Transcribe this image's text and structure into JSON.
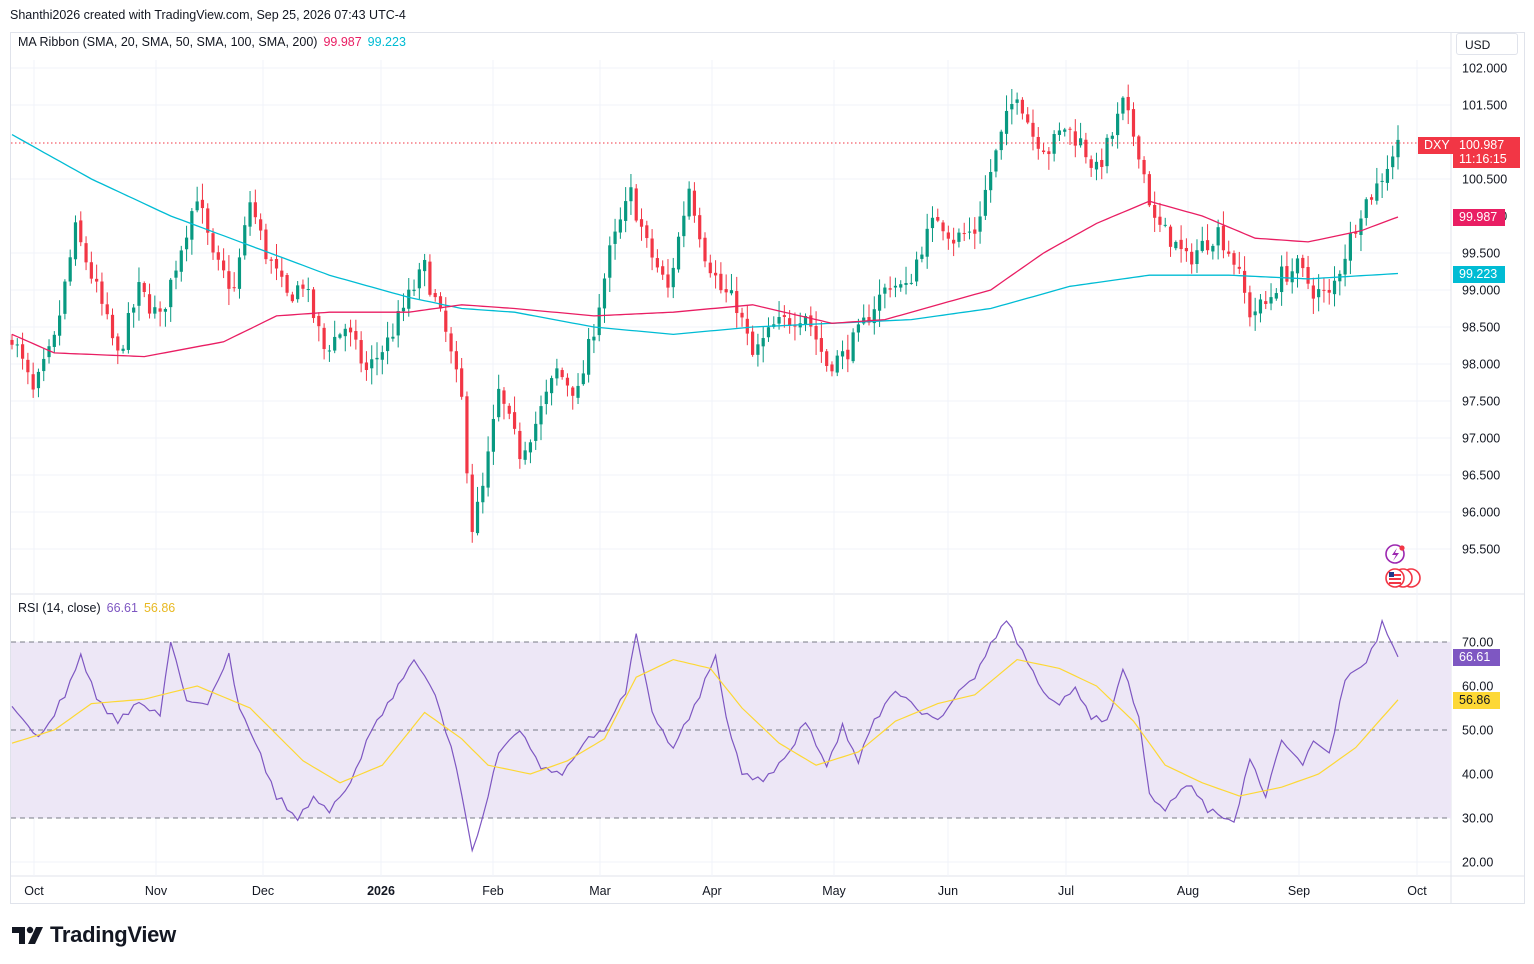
{
  "header": {
    "credit": "Shanthi2026 created with TradingView.com, Sep 25, 2026 07:43 UTC-4"
  },
  "currency_button": "USD",
  "brand": "TradingView",
  "colors": {
    "up": "#089981",
    "down": "#f23645",
    "sma20": "#e91e63",
    "sma50": "#00bcd4",
    "rsi": "#7e57c2",
    "rsi_ma": "#fdd835",
    "rsi_band": "#ede7f6"
  },
  "legend": {
    "ma_title": "MA Ribbon (SMA, 20, SMA, 50, SMA, 100, SMA, 200)",
    "ma_value_1": "99.987",
    "ma_value_2": "99.223",
    "rsi_title": "RSI (14, close)",
    "rsi_value_1": "66.61",
    "rsi_value_2": "56.86"
  },
  "badges": {
    "symbol": "DXY",
    "last_price": "100.987",
    "countdown": "11:16:15",
    "sma20": "99.987",
    "sma50": "99.223",
    "rsi": "66.61",
    "rsi_ma": "56.86"
  },
  "chart_data": [
    {
      "type": "candlestick",
      "symbol": "DXY",
      "x_labels": [
        "Oct",
        "Nov",
        "Dec",
        "2026",
        "Feb",
        "Mar",
        "Apr",
        "May",
        "Jun",
        "Jul",
        "Aug",
        "Sep",
        "Oct"
      ],
      "ylim": [
        95.0,
        102.3
      ],
      "y_ticks": [
        "95.500",
        "96.000",
        "96.500",
        "97.000",
        "97.500",
        "98.000",
        "98.500",
        "99.000",
        "99.500",
        "100.500",
        "101.500",
        "102.000"
      ],
      "last_price": 100.987,
      "close_path": [
        [
          0,
          98.4
        ],
        [
          4,
          97.6
        ],
        [
          8,
          98.3
        ],
        [
          12,
          99.8
        ],
        [
          16,
          99.0
        ],
        [
          20,
          98.1
        ],
        [
          24,
          99.0
        ],
        [
          28,
          98.6
        ],
        [
          32,
          99.6
        ],
        [
          35,
          100.3
        ],
        [
          38,
          99.4
        ],
        [
          42,
          99.0
        ],
        [
          45,
          100.2
        ],
        [
          48,
          99.5
        ],
        [
          52,
          98.9
        ],
        [
          55,
          99.1
        ],
        [
          59,
          98.2
        ],
        [
          63,
          98.5
        ],
        [
          67,
          97.9
        ],
        [
          71,
          98.3
        ],
        [
          75,
          98.9
        ],
        [
          78,
          99.3
        ],
        [
          82,
          98.4
        ],
        [
          85,
          97.5
        ],
        [
          87,
          95.8
        ],
        [
          89,
          96.3
        ],
        [
          92,
          97.6
        ],
        [
          96,
          96.8
        ],
        [
          99,
          97.2
        ],
        [
          103,
          97.9
        ],
        [
          107,
          97.6
        ],
        [
          110,
          98.5
        ],
        [
          113,
          99.5
        ],
        [
          117,
          100.3
        ],
        [
          120,
          99.6
        ],
        [
          124,
          99.0
        ],
        [
          128,
          100.4
        ],
        [
          131,
          99.5
        ],
        [
          134,
          99.0
        ],
        [
          137,
          98.8
        ],
        [
          140,
          98.1
        ],
        [
          144,
          98.5
        ],
        [
          147,
          98.6
        ],
        [
          150,
          98.7
        ],
        [
          154,
          98.0
        ],
        [
          157,
          98.1
        ],
        [
          160,
          98.4
        ],
        [
          163,
          98.8
        ],
        [
          166,
          99.1
        ],
        [
          169,
          99.0
        ],
        [
          172,
          99.6
        ],
        [
          175,
          100.0
        ],
        [
          178,
          99.7
        ],
        [
          182,
          99.8
        ],
        [
          185,
          100.6
        ],
        [
          188,
          101.3
        ],
        [
          190,
          101.7
        ],
        [
          193,
          101.1
        ],
        [
          196,
          100.9
        ],
        [
          199,
          101.2
        ],
        [
          202,
          101.0
        ],
        [
          205,
          100.6
        ],
        [
          208,
          101.1
        ],
        [
          210,
          101.5
        ],
        [
          213,
          100.9
        ],
        [
          216,
          99.9
        ],
        [
          219,
          99.7
        ],
        [
          222,
          99.4
        ],
        [
          225,
          99.6
        ],
        [
          228,
          99.8
        ],
        [
          231,
          99.4
        ],
        [
          234,
          98.7
        ],
        [
          237,
          98.8
        ],
        [
          240,
          99.2
        ],
        [
          243,
          99.3
        ],
        [
          246,
          99.0
        ],
        [
          249,
          98.9
        ],
        [
          252,
          99.5
        ],
        [
          255,
          100.1
        ],
        [
          258,
          100.4
        ],
        [
          260,
          100.7
        ],
        [
          262,
          100.98
        ]
      ],
      "sma20_path": [
        [
          0,
          98.4
        ],
        [
          8,
          98.15
        ],
        [
          25,
          98.1
        ],
        [
          40,
          98.3
        ],
        [
          50,
          98.65
        ],
        [
          60,
          98.7
        ],
        [
          75,
          98.7
        ],
        [
          85,
          98.8
        ],
        [
          95,
          98.75
        ],
        [
          110,
          98.65
        ],
        [
          125,
          98.7
        ],
        [
          140,
          98.8
        ],
        [
          155,
          98.55
        ],
        [
          165,
          98.6
        ],
        [
          175,
          98.8
        ],
        [
          185,
          99.0
        ],
        [
          195,
          99.5
        ],
        [
          205,
          99.9
        ],
        [
          215,
          100.2
        ],
        [
          225,
          100.0
        ],
        [
          235,
          99.7
        ],
        [
          245,
          99.65
        ],
        [
          255,
          99.8
        ],
        [
          262,
          99.987
        ]
      ],
      "sma50_path": [
        [
          0,
          101.1
        ],
        [
          15,
          100.5
        ],
        [
          30,
          100.0
        ],
        [
          45,
          99.6
        ],
        [
          60,
          99.2
        ],
        [
          75,
          98.9
        ],
        [
          85,
          98.75
        ],
        [
          95,
          98.7
        ],
        [
          110,
          98.5
        ],
        [
          125,
          98.4
        ],
        [
          140,
          98.5
        ],
        [
          155,
          98.55
        ],
        [
          170,
          98.6
        ],
        [
          185,
          98.75
        ],
        [
          200,
          99.05
        ],
        [
          215,
          99.2
        ],
        [
          230,
          99.2
        ],
        [
          245,
          99.15
        ],
        [
          262,
          99.223
        ]
      ]
    },
    {
      "type": "line",
      "name": "RSI (14, close)",
      "ylim": [
        15,
        77.5
      ],
      "y_ticks": [
        "20.00",
        "30.00",
        "40.00",
        "50.00",
        "60.00",
        "70.00"
      ],
      "bands": [
        30,
        50,
        70
      ],
      "rsi_path": [
        [
          0,
          55
        ],
        [
          5,
          48
        ],
        [
          10,
          58
        ],
        [
          13,
          67
        ],
        [
          16,
          57
        ],
        [
          20,
          52
        ],
        [
          24,
          56
        ],
        [
          28,
          53
        ],
        [
          30,
          70
        ],
        [
          33,
          57
        ],
        [
          37,
          56
        ],
        [
          41,
          67
        ],
        [
          43,
          55
        ],
        [
          47,
          44
        ],
        [
          50,
          35
        ],
        [
          54,
          30
        ],
        [
          57,
          35
        ],
        [
          60,
          32
        ],
        [
          64,
          38
        ],
        [
          68,
          50
        ],
        [
          72,
          58
        ],
        [
          76,
          66
        ],
        [
          80,
          58
        ],
        [
          84,
          42
        ],
        [
          86,
          29
        ],
        [
          87,
          22
        ],
        [
          89,
          30
        ],
        [
          92,
          45
        ],
        [
          96,
          50
        ],
        [
          100,
          41
        ],
        [
          104,
          40
        ],
        [
          108,
          47
        ],
        [
          112,
          50
        ],
        [
          116,
          59
        ],
        [
          118,
          72
        ],
        [
          121,
          54
        ],
        [
          125,
          46
        ],
        [
          129,
          55
        ],
        [
          133,
          67
        ],
        [
          135,
          53
        ],
        [
          138,
          40
        ],
        [
          142,
          38
        ],
        [
          147,
          45
        ],
        [
          150,
          52
        ],
        [
          154,
          42
        ],
        [
          157,
          51
        ],
        [
          160,
          43
        ],
        [
          163,
          52
        ],
        [
          167,
          59
        ],
        [
          171,
          55
        ],
        [
          175,
          52
        ],
        [
          179,
          59
        ],
        [
          182,
          62
        ],
        [
          185,
          70
        ],
        [
          188,
          75
        ],
        [
          192,
          65
        ],
        [
          195,
          58
        ],
        [
          198,
          56
        ],
        [
          201,
          60
        ],
        [
          204,
          53
        ],
        [
          207,
          52
        ],
        [
          210,
          64
        ],
        [
          213,
          53
        ],
        [
          215,
          35
        ],
        [
          218,
          32
        ],
        [
          222,
          38
        ],
        [
          226,
          32
        ],
        [
          229,
          30
        ],
        [
          231,
          29
        ],
        [
          234,
          43
        ],
        [
          237,
          35
        ],
        [
          240,
          48
        ],
        [
          244,
          42
        ],
        [
          246,
          48
        ],
        [
          249,
          44
        ],
        [
          252,
          62
        ],
        [
          256,
          65
        ],
        [
          259,
          74
        ],
        [
          262,
          66.61
        ]
      ],
      "rsi_ma_path": [
        [
          0,
          47
        ],
        [
          8,
          50
        ],
        [
          15,
          56
        ],
        [
          25,
          57
        ],
        [
          35,
          60
        ],
        [
          45,
          55
        ],
        [
          55,
          43
        ],
        [
          62,
          38
        ],
        [
          70,
          42
        ],
        [
          78,
          54
        ],
        [
          85,
          48
        ],
        [
          90,
          42
        ],
        [
          98,
          40
        ],
        [
          105,
          43
        ],
        [
          112,
          48
        ],
        [
          118,
          62
        ],
        [
          125,
          66
        ],
        [
          132,
          64
        ],
        [
          138,
          55
        ],
        [
          145,
          47
        ],
        [
          152,
          42
        ],
        [
          160,
          45
        ],
        [
          167,
          52
        ],
        [
          175,
          56
        ],
        [
          182,
          58
        ],
        [
          190,
          66
        ],
        [
          198,
          64
        ],
        [
          205,
          60
        ],
        [
          212,
          52
        ],
        [
          218,
          42
        ],
        [
          225,
          38
        ],
        [
          232,
          35
        ],
        [
          240,
          37
        ],
        [
          247,
          40
        ],
        [
          254,
          46
        ],
        [
          262,
          56.86
        ]
      ]
    }
  ]
}
